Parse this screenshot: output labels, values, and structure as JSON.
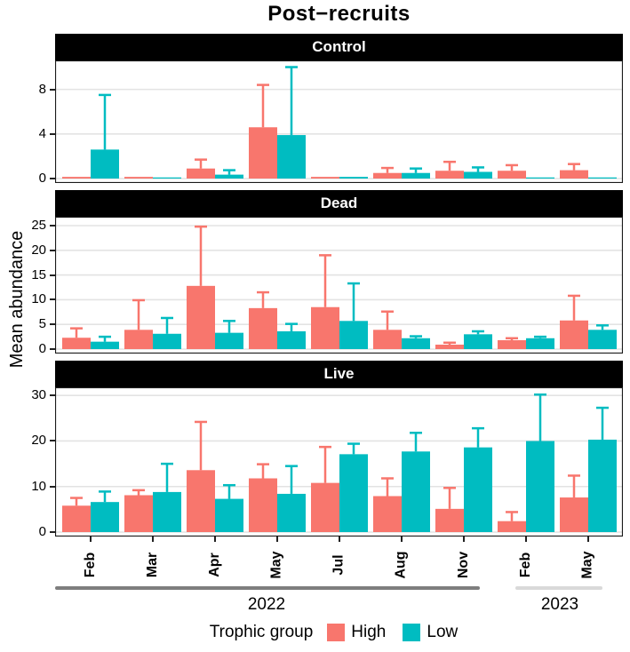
{
  "chart_data": {
    "type": "bar",
    "title": "Post−recruits",
    "ylabel": "Mean abundance",
    "legend_title": "Trophic group",
    "series_names": [
      "High",
      "Low"
    ],
    "colors": {
      "high": "#F8766D",
      "low": "#00BCC1",
      "grid": "#E3E3E3",
      "panel_border": "#1a1a1a"
    },
    "categories": [
      "Feb",
      "Mar",
      "Apr",
      "May",
      "Jul",
      "Aug",
      "Nov",
      "Feb",
      "May"
    ],
    "year_groups": [
      {
        "label": "2022",
        "months": [
          "Feb",
          "Mar",
          "Apr",
          "May",
          "Jul",
          "Aug",
          "Nov"
        ]
      },
      {
        "label": "2023",
        "months": [
          "Feb",
          "May"
        ]
      }
    ],
    "legend_position": "bottom",
    "grid": "major-horizontal",
    "facets": [
      {
        "label": "Control",
        "yticks": [
          0,
          4,
          8
        ],
        "ylim": [
          0,
          10.6
        ],
        "high": {
          "mean": [
            0.15,
            0.15,
            0.9,
            4.6,
            0.15,
            0.5,
            0.7,
            0.7,
            0.75
          ],
          "upper": [
            null,
            null,
            1.7,
            8.4,
            null,
            0.95,
            1.5,
            1.2,
            1.3
          ]
        },
        "low": {
          "mean": [
            2.6,
            0.1,
            0.35,
            3.9,
            0.15,
            0.5,
            0.6,
            0.1,
            0.1
          ],
          "upper": [
            7.5,
            null,
            0.75,
            10.0,
            null,
            0.9,
            1.0,
            null,
            null
          ]
        }
      },
      {
        "label": "Dead",
        "yticks": [
          0,
          5,
          10,
          15,
          20,
          25
        ],
        "ylim": [
          0,
          26.8
        ],
        "high": {
          "mean": [
            2.3,
            3.9,
            12.8,
            8.3,
            8.5,
            3.9,
            0.9,
            1.8,
            5.8
          ],
          "upper": [
            4.2,
            9.9,
            24.8,
            11.5,
            19.0,
            7.6,
            1.3,
            2.2,
            10.8
          ]
        },
        "low": {
          "mean": [
            1.5,
            3.1,
            3.3,
            3.6,
            5.7,
            2.2,
            3.0,
            2.2,
            3.9
          ],
          "upper": [
            2.5,
            6.3,
            5.7,
            5.1,
            13.3,
            2.6,
            3.6,
            2.5,
            4.8
          ]
        }
      },
      {
        "label": "Live",
        "yticks": [
          0,
          10,
          20,
          30
        ],
        "ylim": [
          0,
          31.8
        ],
        "high": {
          "mean": [
            5.8,
            8.1,
            13.6,
            11.8,
            10.8,
            7.9,
            5.1,
            2.4,
            7.6
          ],
          "upper": [
            7.5,
            9.2,
            24.2,
            14.9,
            18.7,
            11.8,
            9.7,
            4.4,
            12.4
          ]
        },
        "low": {
          "mean": [
            6.6,
            8.8,
            7.3,
            8.4,
            17.1,
            17.7,
            18.6,
            20.0,
            20.3
          ],
          "upper": [
            8.9,
            15.0,
            10.3,
            14.5,
            19.4,
            21.8,
            22.8,
            30.2,
            27.3
          ]
        }
      }
    ]
  }
}
